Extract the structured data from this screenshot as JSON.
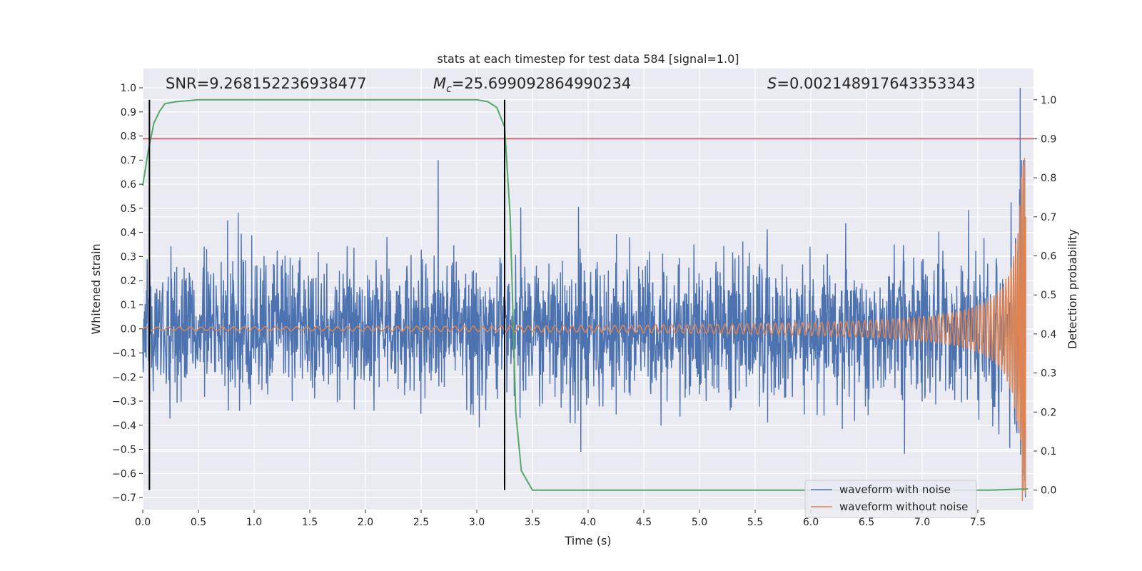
{
  "chart_data": {
    "type": "line",
    "title": "stats at each timestep for test data 584 [signal=1.0]",
    "xlabel": "Time (s)",
    "ylabel": "Whitened strain",
    "y2label": "Detection probability",
    "xlim": [
      0,
      8.0
    ],
    "ylim": [
      -0.75,
      1.08
    ],
    "y2lim": [
      -0.05,
      1.08
    ],
    "xticks": [
      "0.0",
      "0.5",
      "1.0",
      "1.5",
      "2.0",
      "2.5",
      "3.0",
      "3.5",
      "4.0",
      "4.5",
      "5.0",
      "5.5",
      "6.0",
      "6.5",
      "7.0",
      "7.5"
    ],
    "yticks": [
      "1.0",
      "0.9",
      "0.8",
      "0.7",
      "0.6",
      "0.5",
      "0.4",
      "0.3",
      "0.2",
      "0.1",
      "0.0",
      "−0.1",
      "−0.2",
      "−0.3",
      "−0.4",
      "−0.5",
      "−0.6",
      "−0.7"
    ],
    "y2ticks": [
      "1.0",
      "0.9",
      "0.8",
      "0.7",
      "0.6",
      "0.5",
      "0.4",
      "0.3",
      "0.2",
      "0.1",
      "0.0"
    ],
    "grid": true,
    "legend_placement": "lower-right",
    "annotations": {
      "snr": "SNR=9.268152236938477",
      "mc_symbol": "M",
      "mc_sub": "c",
      "mc_value": "=25.699092864990234",
      "s_symbol": "S",
      "s_value": "=0.002148917643353343"
    },
    "vlines_x": [
      0.06,
      3.25
    ],
    "threshold_prob": 0.9,
    "series": [
      {
        "name": "waveform with noise",
        "color": "#4c72b0",
        "noise_std": 0.14,
        "peak_value": 1.0,
        "peak_time": 7.88
      },
      {
        "name": "waveform without noise",
        "color": "#dd8452",
        "chirp_end_time": 7.93,
        "max_amplitude": 0.72
      },
      {
        "name": "detection probability",
        "color": "#55a868",
        "x": [
          0.0,
          0.05,
          0.1,
          0.15,
          0.2,
          0.3,
          0.5,
          1.0,
          2.0,
          3.0,
          3.1,
          3.18,
          3.25,
          3.3,
          3.35,
          3.4,
          3.5,
          4.0,
          5.0,
          6.0,
          7.0,
          7.6,
          7.95
        ],
        "y": [
          0.78,
          0.87,
          0.94,
          0.97,
          0.99,
          0.995,
          1.0,
          1.0,
          1.0,
          1.0,
          0.995,
          0.98,
          0.93,
          0.7,
          0.2,
          0.05,
          0.0,
          0.0,
          0.0,
          0.0,
          0.0,
          0.0,
          0.003
        ]
      }
    ],
    "colors": {
      "background": "#eaeaf2",
      "grid": "#ffffff",
      "threshold": "#c44e52",
      "vline": "#000000"
    }
  }
}
